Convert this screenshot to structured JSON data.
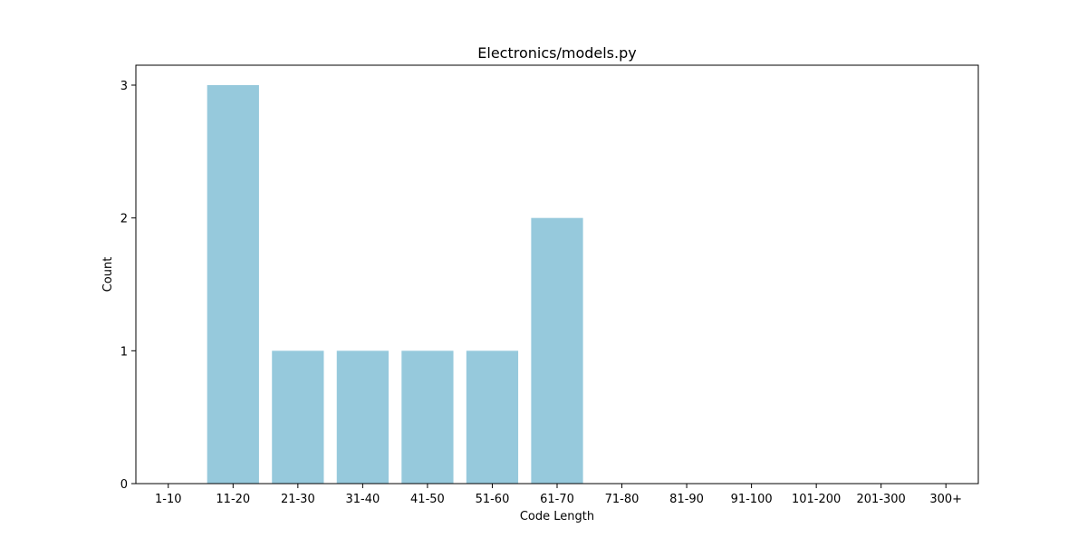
{
  "chart_data": {
    "type": "bar",
    "title": "Electronics/models.py",
    "xlabel": "Code Length",
    "ylabel": "Count",
    "categories": [
      "1-10",
      "11-20",
      "21-30",
      "31-40",
      "41-50",
      "51-60",
      "61-70",
      "71-80",
      "81-90",
      "91-100",
      "101-200",
      "201-300",
      "300+"
    ],
    "values": [
      0,
      3,
      1,
      1,
      1,
      1,
      2,
      0,
      0,
      0,
      0,
      0,
      0
    ],
    "ylim": [
      0,
      3.15
    ],
    "yticks": [
      0,
      1,
      2,
      3
    ],
    "grid": false,
    "bar_color": "#96c9dc"
  }
}
